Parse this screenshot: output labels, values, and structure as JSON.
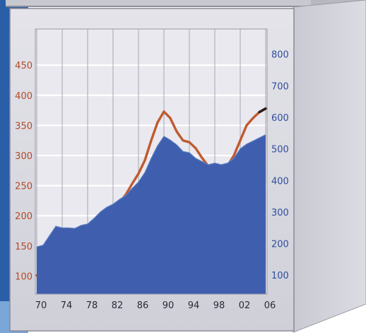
{
  "chart_data": {
    "type": "line",
    "title": "",
    "xlabel": "",
    "ylabel": "",
    "x_ticks": [
      "70",
      "74",
      "78",
      "82",
      "86",
      "90",
      "94",
      "98",
      "02",
      "06"
    ],
    "xlim": [
      1970,
      2006
    ],
    "y_left": {
      "ticks": [
        "100",
        "150",
        "200",
        "250",
        "300",
        "350",
        "400",
        "450"
      ],
      "ylim": [
        70,
        510
      ]
    },
    "y_right": {
      "ticks": [
        "100",
        "200",
        "300",
        "400",
        "500",
        "600",
        "700",
        "800"
      ],
      "ylim": [
        40,
        880
      ]
    },
    "grid": true,
    "series": [
      {
        "axis": "left",
        "style": "line",
        "color": "#c05a2e",
        "values": [
          [
            1970,
            101
          ],
          [
            1971,
            110
          ],
          [
            1972,
            128
          ],
          [
            1973,
            150
          ],
          [
            1974,
            147
          ],
          [
            1975,
            147
          ],
          [
            1976,
            143
          ],
          [
            1977,
            152
          ],
          [
            1978,
            158
          ],
          [
            1979,
            170
          ],
          [
            1980,
            186
          ],
          [
            1981,
            200
          ],
          [
            1982,
            210
          ],
          [
            1983,
            222
          ],
          [
            1984,
            235
          ],
          [
            1985,
            253
          ],
          [
            1986,
            270
          ],
          [
            1987,
            292
          ],
          [
            1988,
            325
          ],
          [
            1989,
            355
          ],
          [
            1990,
            373
          ],
          [
            1991,
            362
          ],
          [
            1992,
            340
          ],
          [
            1993,
            325
          ],
          [
            1994,
            322
          ],
          [
            1995,
            312
          ],
          [
            1996,
            296
          ],
          [
            1997,
            282
          ],
          [
            1998,
            278
          ],
          [
            1999,
            278
          ],
          [
            2000,
            283
          ],
          [
            2001,
            300
          ],
          [
            2002,
            325
          ],
          [
            2003,
            350
          ],
          [
            2004,
            362
          ],
          [
            2005,
            372
          ],
          [
            2006,
            378
          ]
        ]
      },
      {
        "axis": "right",
        "style": "area",
        "color": "#3f5fae",
        "values": [
          [
            1970,
            190
          ],
          [
            1971,
            195
          ],
          [
            1972,
            225
          ],
          [
            1973,
            255
          ],
          [
            1974,
            250
          ],
          [
            1975,
            250
          ],
          [
            1976,
            248
          ],
          [
            1977,
            258
          ],
          [
            1978,
            262
          ],
          [
            1979,
            280
          ],
          [
            1980,
            300
          ],
          [
            1981,
            315
          ],
          [
            1982,
            325
          ],
          [
            1983,
            340
          ],
          [
            1984,
            352
          ],
          [
            1985,
            375
          ],
          [
            1986,
            395
          ],
          [
            1987,
            425
          ],
          [
            1988,
            470
          ],
          [
            1989,
            510
          ],
          [
            1990,
            540
          ],
          [
            1991,
            528
          ],
          [
            1992,
            513
          ],
          [
            1993,
            492
          ],
          [
            1994,
            488
          ],
          [
            1995,
            470
          ],
          [
            1996,
            460
          ],
          [
            1997,
            450
          ],
          [
            1998,
            455
          ],
          [
            1999,
            450
          ],
          [
            2000,
            455
          ],
          [
            2001,
            470
          ],
          [
            2002,
            500
          ],
          [
            2003,
            515
          ],
          [
            2004,
            525
          ],
          [
            2005,
            535
          ],
          [
            2006,
            545
          ]
        ]
      }
    ]
  }
}
